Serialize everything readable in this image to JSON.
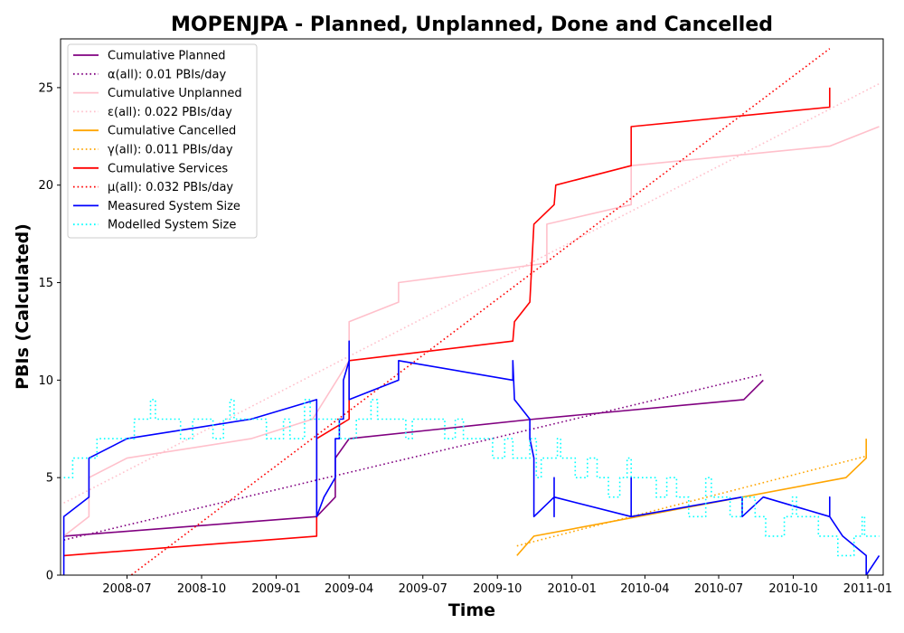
{
  "chart_data": {
    "type": "line",
    "title": "MOPENJPA - Planned, Unplanned, Done  and Cancelled",
    "xlabel": "Time",
    "ylabel": "PBIs (Calculated)",
    "xlim": [
      "2008-04-10",
      "2011-01-20"
    ],
    "ylim": [
      0,
      27.5
    ],
    "x_ticks": [
      "2008-07",
      "2008-10",
      "2009-01",
      "2009-04",
      "2009-07",
      "2009-10",
      "2010-01",
      "2010-04",
      "2010-07",
      "2010-10",
      "2011-01"
    ],
    "y_ticks": [
      0,
      5,
      10,
      15,
      20,
      25
    ],
    "grid": false,
    "legend_position": "top-left",
    "series": [
      {
        "name": "Cumulative Planned",
        "color": "#800080",
        "style": "solid",
        "points": [
          [
            "2008-04-14",
            2
          ],
          [
            "2009-02-20",
            3
          ],
          [
            "2009-03-15",
            4
          ],
          [
            "2009-03-15",
            6
          ],
          [
            "2009-04-01",
            7
          ],
          [
            "2009-11-15",
            8
          ],
          [
            "2010-08-01",
            9
          ],
          [
            "2010-08-25",
            10
          ]
        ]
      },
      {
        "name": "α(all): 0.01 PBIs/day",
        "color": "#800080",
        "style": "dotted",
        "points": [
          [
            "2008-04-14",
            1.8
          ],
          [
            "2010-08-25",
            10.3
          ]
        ]
      },
      {
        "name": "Cumulative Unplanned",
        "color": "#ffc0cb",
        "style": "solid",
        "points": [
          [
            "2008-04-14",
            2
          ],
          [
            "2008-05-15",
            3
          ],
          [
            "2008-05-15",
            5
          ],
          [
            "2008-07-01",
            6
          ],
          [
            "2008-12-01",
            7
          ],
          [
            "2009-02-15",
            8
          ],
          [
            "2009-04-01",
            11
          ],
          [
            "2009-04-01",
            13
          ],
          [
            "2009-06-01",
            14
          ],
          [
            "2009-06-01",
            15
          ],
          [
            "2009-12-01",
            16
          ],
          [
            "2009-12-01",
            18
          ],
          [
            "2010-03-15",
            19
          ],
          [
            "2010-03-15",
            21
          ],
          [
            "2010-11-15",
            22
          ],
          [
            "2011-01-15",
            23
          ]
        ]
      },
      {
        "name": "ε(all): 0.022 PBIs/day",
        "color": "#ffc0cb",
        "style": "dotted",
        "points": [
          [
            "2008-04-14",
            3.7
          ],
          [
            "2011-01-15",
            25.2
          ]
        ]
      },
      {
        "name": "Cumulative Cancelled",
        "color": "#ffa500",
        "style": "solid",
        "points": [
          [
            "2009-10-25",
            1
          ],
          [
            "2009-11-15",
            2
          ],
          [
            "2010-12-05",
            5
          ],
          [
            "2010-12-30",
            6
          ],
          [
            "2010-12-30",
            7
          ]
        ]
      },
      {
        "name": "γ(all): 0.011 PBIs/day",
        "color": "#ffa500",
        "style": "dotted",
        "points": [
          [
            "2009-10-25",
            1.5
          ],
          [
            "2010-12-30",
            6.1
          ]
        ]
      },
      {
        "name": "Cumulative Services",
        "color": "#ff0000",
        "style": "solid",
        "points": [
          [
            "2008-04-14",
            1
          ],
          [
            "2009-02-20",
            2
          ],
          [
            "2009-02-20",
            7
          ],
          [
            "2009-04-01",
            8
          ],
          [
            "2009-04-01",
            11
          ],
          [
            "2009-10-20",
            12
          ],
          [
            "2009-10-22",
            13
          ],
          [
            "2009-11-10",
            14
          ],
          [
            "2009-11-15",
            18
          ],
          [
            "2009-12-10",
            19
          ],
          [
            "2009-12-12",
            20
          ],
          [
            "2010-03-15",
            21
          ],
          [
            "2010-03-15",
            23
          ],
          [
            "2010-11-15",
            24
          ],
          [
            "2010-11-15",
            25
          ]
        ]
      },
      {
        "name": "μ(all): 0.032 PBIs/day",
        "color": "#ff0000",
        "style": "dotted",
        "points": [
          [
            "2008-06-20",
            -0.5
          ],
          [
            "2010-11-15",
            27
          ]
        ]
      },
      {
        "name": "Measured System Size",
        "color": "#0000ff",
        "style": "solid",
        "points": [
          [
            "2008-04-14",
            0
          ],
          [
            "2008-04-14",
            3
          ],
          [
            "2008-05-15",
            4
          ],
          [
            "2008-05-15",
            6
          ],
          [
            "2008-07-01",
            7
          ],
          [
            "2008-12-01",
            8
          ],
          [
            "2009-02-20",
            9
          ],
          [
            "2009-02-20",
            3
          ],
          [
            "2009-03-01",
            4
          ],
          [
            "2009-03-15",
            5
          ],
          [
            "2009-03-15",
            7
          ],
          [
            "2009-03-20",
            7
          ],
          [
            "2009-03-20",
            8
          ],
          [
            "2009-03-25",
            8
          ],
          [
            "2009-03-25",
            10
          ],
          [
            "2009-04-01",
            11
          ],
          [
            "2009-04-01",
            12
          ],
          [
            "2009-04-01",
            9
          ],
          [
            "2009-06-01",
            10
          ],
          [
            "2009-06-01",
            11
          ],
          [
            "2009-10-20",
            10
          ],
          [
            "2009-10-20",
            11
          ],
          [
            "2009-10-22",
            9
          ],
          [
            "2009-11-10",
            8
          ],
          [
            "2009-11-10",
            7
          ],
          [
            "2009-11-15",
            6
          ],
          [
            "2009-11-15",
            3
          ],
          [
            "2009-12-10",
            4
          ],
          [
            "2009-12-10",
            3
          ],
          [
            "2009-12-10",
            5
          ],
          [
            "2009-12-10",
            4
          ],
          [
            "2010-03-15",
            3
          ],
          [
            "2010-03-15",
            5
          ],
          [
            "2010-03-15",
            3
          ],
          [
            "2010-07-30",
            4
          ],
          [
            "2010-07-30",
            3
          ],
          [
            "2010-08-25",
            4
          ],
          [
            "2010-11-15",
            3
          ],
          [
            "2010-11-15",
            4
          ],
          [
            "2010-11-15",
            3
          ],
          [
            "2010-12-01",
            2
          ],
          [
            "2010-12-30",
            1
          ],
          [
            "2010-12-30",
            0
          ],
          [
            "2011-01-15",
            1
          ]
        ]
      },
      {
        "name": "Modelled System Size",
        "color": "#00ffff",
        "style": "dotted",
        "points": [
          [
            "2008-04-14",
            5
          ],
          [
            "2008-04-25",
            5
          ],
          [
            "2008-04-25",
            6
          ],
          [
            "2008-05-25",
            6
          ],
          [
            "2008-05-25",
            7
          ],
          [
            "2008-07-10",
            7
          ],
          [
            "2008-07-10",
            8
          ],
          [
            "2008-07-30",
            8
          ],
          [
            "2008-07-30",
            9
          ],
          [
            "2008-08-05",
            9
          ],
          [
            "2008-08-05",
            8
          ],
          [
            "2008-09-05",
            8
          ],
          [
            "2008-09-05",
            7
          ],
          [
            "2008-09-20",
            7
          ],
          [
            "2008-09-20",
            8
          ],
          [
            "2008-10-15",
            8
          ],
          [
            "2008-10-15",
            7
          ],
          [
            "2008-10-28",
            7
          ],
          [
            "2008-10-28",
            8
          ],
          [
            "2008-11-05",
            8
          ],
          [
            "2008-11-05",
            9
          ],
          [
            "2008-11-10",
            9
          ],
          [
            "2008-11-10",
            8
          ],
          [
            "2008-12-20",
            8
          ],
          [
            "2008-12-20",
            7
          ],
          [
            "2009-01-10",
            7
          ],
          [
            "2009-01-10",
            8
          ],
          [
            "2009-01-18",
            8
          ],
          [
            "2009-01-18",
            7
          ],
          [
            "2009-02-05",
            7
          ],
          [
            "2009-02-05",
            9
          ],
          [
            "2009-02-12",
            9
          ],
          [
            "2009-02-12",
            8
          ],
          [
            "2009-03-20",
            8
          ],
          [
            "2009-03-20",
            7
          ],
          [
            "2009-04-10",
            7
          ],
          [
            "2009-04-10",
            8
          ],
          [
            "2009-04-28",
            8
          ],
          [
            "2009-04-28",
            9
          ],
          [
            "2009-05-06",
            9
          ],
          [
            "2009-05-06",
            8
          ],
          [
            "2009-06-10",
            8
          ],
          [
            "2009-06-10",
            7
          ],
          [
            "2009-06-18",
            7
          ],
          [
            "2009-06-18",
            8
          ],
          [
            "2009-07-28",
            8
          ],
          [
            "2009-07-28",
            7
          ],
          [
            "2009-08-10",
            7
          ],
          [
            "2009-08-10",
            8
          ],
          [
            "2009-08-20",
            8
          ],
          [
            "2009-08-20",
            7
          ],
          [
            "2009-09-25",
            7
          ],
          [
            "2009-09-25",
            6
          ],
          [
            "2009-10-10",
            6
          ],
          [
            "2009-10-10",
            7
          ],
          [
            "2009-10-20",
            7
          ],
          [
            "2009-10-20",
            6
          ],
          [
            "2009-11-10",
            6
          ],
          [
            "2009-11-10",
            7
          ],
          [
            "2009-11-18",
            7
          ],
          [
            "2009-11-18",
            5
          ],
          [
            "2009-11-24",
            5
          ],
          [
            "2009-11-24",
            6
          ],
          [
            "2009-12-14",
            6
          ],
          [
            "2009-12-14",
            7
          ],
          [
            "2009-12-18",
            7
          ],
          [
            "2009-12-18",
            6
          ],
          [
            "2010-01-05",
            6
          ],
          [
            "2010-01-05",
            5
          ],
          [
            "2010-01-20",
            5
          ],
          [
            "2010-01-20",
            6
          ],
          [
            "2010-02-01",
            6
          ],
          [
            "2010-02-01",
            5
          ],
          [
            "2010-02-15",
            5
          ],
          [
            "2010-02-15",
            4
          ],
          [
            "2010-03-01",
            4
          ],
          [
            "2010-03-01",
            5
          ],
          [
            "2010-03-10",
            5
          ],
          [
            "2010-03-10",
            6
          ],
          [
            "2010-03-15",
            6
          ],
          [
            "2010-03-15",
            5
          ],
          [
            "2010-04-15",
            5
          ],
          [
            "2010-04-15",
            4
          ],
          [
            "2010-04-28",
            4
          ],
          [
            "2010-04-28",
            5
          ],
          [
            "2010-05-10",
            5
          ],
          [
            "2010-05-10",
            4
          ],
          [
            "2010-05-25",
            4
          ],
          [
            "2010-05-25",
            3
          ],
          [
            "2010-06-15",
            3
          ],
          [
            "2010-06-15",
            5
          ],
          [
            "2010-06-22",
            5
          ],
          [
            "2010-06-22",
            4
          ],
          [
            "2010-07-15",
            4
          ],
          [
            "2010-07-15",
            3
          ],
          [
            "2010-07-30",
            3
          ],
          [
            "2010-07-30",
            4
          ],
          [
            "2010-08-15",
            4
          ],
          [
            "2010-08-15",
            3
          ],
          [
            "2010-08-28",
            3
          ],
          [
            "2010-08-28",
            2
          ],
          [
            "2010-09-20",
            2
          ],
          [
            "2010-09-20",
            3
          ],
          [
            "2010-09-30",
            3
          ],
          [
            "2010-09-30",
            4
          ],
          [
            "2010-10-05",
            4
          ],
          [
            "2010-10-05",
            3
          ],
          [
            "2010-11-01",
            3
          ],
          [
            "2010-11-01",
            2
          ],
          [
            "2010-11-25",
            2
          ],
          [
            "2010-11-25",
            1
          ],
          [
            "2010-12-15",
            1
          ],
          [
            "2010-12-15",
            2
          ],
          [
            "2010-12-25",
            2
          ],
          [
            "2010-12-25",
            3
          ],
          [
            "2010-12-28",
            3
          ],
          [
            "2010-12-28",
            2
          ],
          [
            "2011-01-15",
            2
          ]
        ]
      }
    ]
  }
}
